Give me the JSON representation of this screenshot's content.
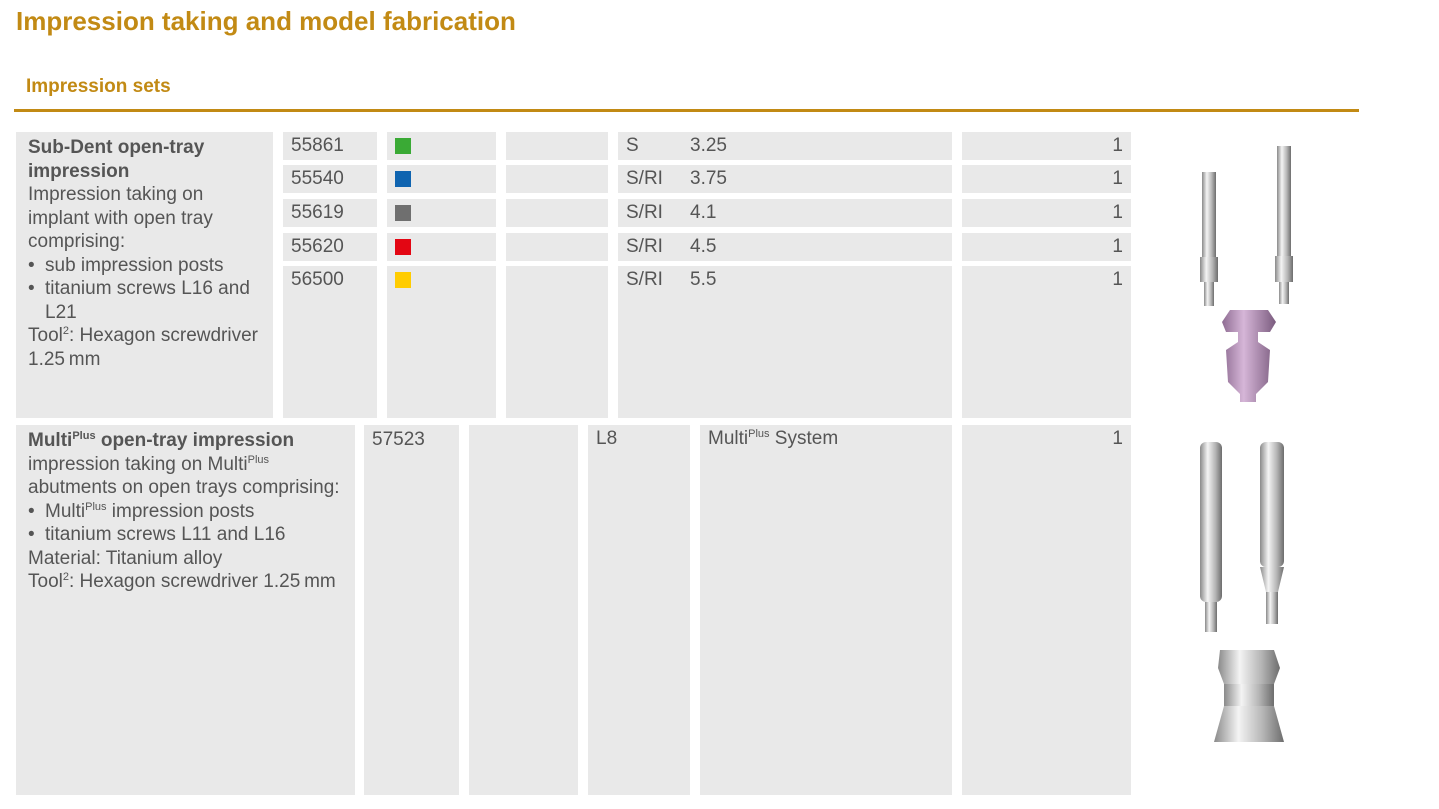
{
  "title": "Impression taking and model fabrication",
  "section": "Impression sets",
  "products": [
    {
      "name": [
        "Sub-Dent open-tray impression"
      ],
      "intro": [
        "Impression taking on implant with open tray comprising:"
      ],
      "items": [
        [
          "sub impression posts"
        ],
        [
          "titanium screws L16 and L21"
        ]
      ],
      "notes": [
        [
          "Tool",
          {
            "sup": "2"
          },
          ": Hexagon screwdriver 1.25 mm"
        ]
      ],
      "variants": [
        {
          "article": "55861",
          "color": "#3aaa35",
          "connection": "S",
          "diameter": "3.25",
          "quantity": 1
        },
        {
          "article": "55540",
          "color": "#0f64b0",
          "connection": "S/RI",
          "diameter": "3.75",
          "quantity": 1
        },
        {
          "article": "55619",
          "color": "#6f6f6f",
          "connection": "S/RI",
          "diameter": "4.1",
          "quantity": 1
        },
        {
          "article": "55620",
          "color": "#e30613",
          "connection": "S/RI",
          "diameter": "4.5",
          "quantity": 1
        },
        {
          "article": "56500",
          "color": "#ffcc00",
          "connection": "S/RI",
          "diameter": "5.5",
          "quantity": 1
        }
      ]
    },
    {
      "name": [
        "Multi",
        {
          "sup": "Plus"
        },
        " open-tray impression"
      ],
      "intro": [
        "impression taking on Multi",
        {
          "sup": "Plus"
        },
        " abutments on open trays comprising:"
      ],
      "items": [
        [
          "Multi",
          {
            "sup": "Plus"
          },
          " impression posts"
        ],
        [
          "titanium screws L11 and L16"
        ]
      ],
      "notes": [
        [
          "Material: Titanium alloy"
        ],
        [
          "Tool",
          {
            "sup": "2"
          },
          ": Hexagon screwdriver 1.25 mm"
        ]
      ],
      "variants": [
        {
          "article": "57523",
          "length": "L8",
          "system": [
            "Multi",
            {
              "sup": "Plus"
            },
            " System"
          ],
          "quantity": 1
        }
      ]
    }
  ]
}
